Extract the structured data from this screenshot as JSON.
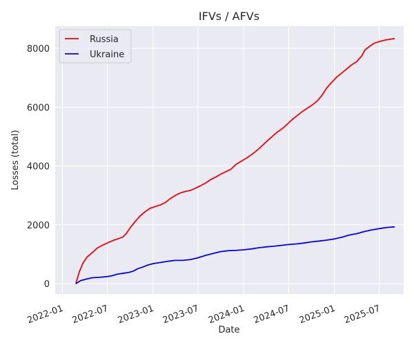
{
  "chart_data": {
    "type": "line",
    "title": "IFVs / AFVs",
    "xlabel": "Date",
    "ylabel": "Losses (total)",
    "x_ticks": [
      "2022-01",
      "2022-07",
      "2023-01",
      "2023-07",
      "2024-01",
      "2024-07",
      "2025-01",
      "2025-07"
    ],
    "y_ticks": [
      0,
      2000,
      4000,
      6000,
      8000
    ],
    "xlim": [
      "2021-12-03",
      "2025-10-07"
    ],
    "ylim": [
      -350,
      8750
    ],
    "grid": true,
    "legend_position": "top-left",
    "series": [
      {
        "name": "Russia",
        "color": "#ff0000",
        "points": [
          [
            "2022-02-24",
            0
          ],
          [
            "2022-03-10",
            400
          ],
          [
            "2022-03-25",
            700
          ],
          [
            "2022-04-10",
            900
          ],
          [
            "2022-05-01",
            1050
          ],
          [
            "2022-05-20",
            1200
          ],
          [
            "2022-06-10",
            1300
          ],
          [
            "2022-07-01",
            1380
          ],
          [
            "2022-07-25",
            1470
          ],
          [
            "2022-08-15",
            1530
          ],
          [
            "2022-09-01",
            1580
          ],
          [
            "2022-09-15",
            1700
          ],
          [
            "2022-10-01",
            1900
          ],
          [
            "2022-10-20",
            2100
          ],
          [
            "2022-11-10",
            2300
          ],
          [
            "2022-12-01",
            2450
          ],
          [
            "2022-12-20",
            2560
          ],
          [
            "2023-01-10",
            2620
          ],
          [
            "2023-02-01",
            2680
          ],
          [
            "2023-02-20",
            2760
          ],
          [
            "2023-03-10",
            2880
          ],
          [
            "2023-04-01",
            3000
          ],
          [
            "2023-04-20",
            3080
          ],
          [
            "2023-05-10",
            3130
          ],
          [
            "2023-06-01",
            3170
          ],
          [
            "2023-06-20",
            3240
          ],
          [
            "2023-07-10",
            3320
          ],
          [
            "2023-08-01",
            3420
          ],
          [
            "2023-08-20",
            3530
          ],
          [
            "2023-09-10",
            3620
          ],
          [
            "2023-10-01",
            3720
          ],
          [
            "2023-10-25",
            3820
          ],
          [
            "2023-11-10",
            3880
          ],
          [
            "2023-12-01",
            4050
          ],
          [
            "2023-12-20",
            4150
          ],
          [
            "2024-01-10",
            4250
          ],
          [
            "2024-02-01",
            4380
          ],
          [
            "2024-02-20",
            4500
          ],
          [
            "2024-03-15",
            4680
          ],
          [
            "2024-04-05",
            4850
          ],
          [
            "2024-04-25",
            5000
          ],
          [
            "2024-05-15",
            5150
          ],
          [
            "2024-06-05",
            5270
          ],
          [
            "2024-06-25",
            5420
          ],
          [
            "2024-07-15",
            5580
          ],
          [
            "2024-08-05",
            5720
          ],
          [
            "2024-08-25",
            5850
          ],
          [
            "2024-09-15",
            5970
          ],
          [
            "2024-10-05",
            6080
          ],
          [
            "2024-10-25",
            6220
          ],
          [
            "2024-11-10",
            6380
          ],
          [
            "2024-12-01",
            6650
          ],
          [
            "2024-12-20",
            6830
          ],
          [
            "2025-01-10",
            7020
          ],
          [
            "2025-02-01",
            7170
          ],
          [
            "2025-02-20",
            7300
          ],
          [
            "2025-03-10",
            7430
          ],
          [
            "2025-04-01",
            7550
          ],
          [
            "2025-04-20",
            7730
          ],
          [
            "2025-05-05",
            7950
          ],
          [
            "2025-05-25",
            8080
          ],
          [
            "2025-06-10",
            8170
          ],
          [
            "2025-07-01",
            8230
          ],
          [
            "2025-07-25",
            8280
          ],
          [
            "2025-08-15",
            8310
          ],
          [
            "2025-09-01",
            8330
          ]
        ]
      },
      {
        "name": "Ukraine",
        "color": "#0000ff",
        "points": [
          [
            "2022-02-24",
            0
          ],
          [
            "2022-03-15",
            100
          ],
          [
            "2022-04-10",
            160
          ],
          [
            "2022-05-01",
            200
          ],
          [
            "2022-06-01",
            215
          ],
          [
            "2022-07-01",
            240
          ],
          [
            "2022-07-20",
            270
          ],
          [
            "2022-08-10",
            320
          ],
          [
            "2022-09-01",
            350
          ],
          [
            "2022-09-25",
            380
          ],
          [
            "2022-10-15",
            430
          ],
          [
            "2022-11-01",
            510
          ],
          [
            "2022-11-20",
            560
          ],
          [
            "2022-12-10",
            630
          ],
          [
            "2023-01-01",
            680
          ],
          [
            "2023-02-01",
            720
          ],
          [
            "2023-03-01",
            760
          ],
          [
            "2023-04-01",
            790
          ],
          [
            "2023-05-01",
            790
          ],
          [
            "2023-06-01",
            820
          ],
          [
            "2023-07-01",
            880
          ],
          [
            "2023-08-01",
            960
          ],
          [
            "2023-09-01",
            1030
          ],
          [
            "2023-10-01",
            1090
          ],
          [
            "2023-11-01",
            1120
          ],
          [
            "2023-12-01",
            1130
          ],
          [
            "2024-01-01",
            1150
          ],
          [
            "2024-02-01",
            1180
          ],
          [
            "2024-03-01",
            1220
          ],
          [
            "2024-04-01",
            1250
          ],
          [
            "2024-05-01",
            1270
          ],
          [
            "2024-06-01",
            1300
          ],
          [
            "2024-07-01",
            1330
          ],
          [
            "2024-08-01",
            1350
          ],
          [
            "2024-09-01",
            1380
          ],
          [
            "2024-10-01",
            1420
          ],
          [
            "2024-11-01",
            1450
          ],
          [
            "2024-12-01",
            1480
          ],
          [
            "2025-01-01",
            1520
          ],
          [
            "2025-02-01",
            1580
          ],
          [
            "2025-03-01",
            1650
          ],
          [
            "2025-04-01",
            1700
          ],
          [
            "2025-05-01",
            1770
          ],
          [
            "2025-06-01",
            1830
          ],
          [
            "2025-07-01",
            1870
          ],
          [
            "2025-08-01",
            1910
          ],
          [
            "2025-09-01",
            1930
          ]
        ]
      }
    ]
  }
}
